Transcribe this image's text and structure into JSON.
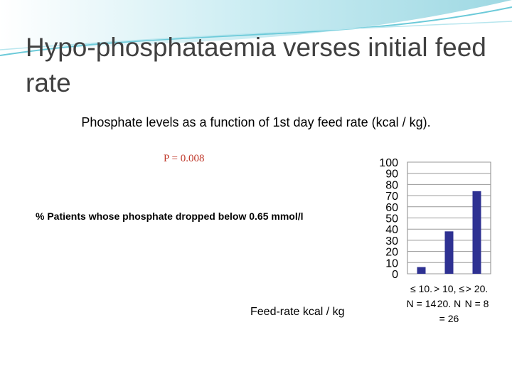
{
  "slide_title": "Hypo-phosphataemia verses initial feed rate",
  "chart_data": {
    "type": "bar",
    "title": "Phosphate levels as a function of 1st day feed rate (kcal / kg).",
    "annotation": "P = 0.008",
    "y_label": "% Patients whose phosphate dropped below 0.65 mmol/l",
    "x_label": "Feed-rate kcal / kg",
    "categories": [
      "≤ 10. N = 14",
      "> 10, ≤ 20. N = 26",
      "> 20. N = 8"
    ],
    "values": [
      6,
      38,
      74
    ],
    "color": "#2e3192",
    "ylim": [
      0,
      100
    ],
    "yticks": [
      0,
      10,
      20,
      30,
      40,
      50,
      60,
      70,
      80,
      90,
      100
    ],
    "grid": true
  }
}
